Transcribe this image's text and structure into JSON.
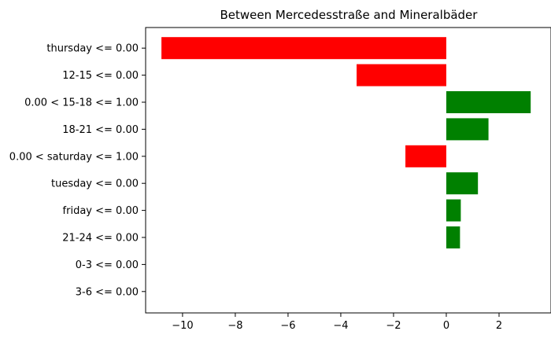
{
  "chart_data": {
    "type": "bar",
    "orientation": "horizontal",
    "title": "Between Mercedesstraße and Mineralbäder",
    "xlabel": "",
    "ylabel": "",
    "categories": [
      "thursday <= 0.00",
      "12-15 <= 0.00",
      "0.00 < 15-18 <= 1.00",
      "18-21 <= 0.00",
      "0.00 < saturday <= 1.00",
      "tuesday <= 0.00",
      "friday <= 0.00",
      "21-24 <= 0.00",
      "0-3 <= 0.00",
      "3-6 <= 0.00"
    ],
    "values": [
      -10.8,
      -3.4,
      3.2,
      1.6,
      -1.55,
      1.2,
      0.55,
      0.52,
      0,
      0
    ],
    "xlim": [
      -11.4,
      4.0
    ],
    "xticks": [
      -10,
      -8,
      -6,
      -4,
      -2,
      0,
      2
    ],
    "xtick_labels": [
      "−10",
      "−8",
      "−6",
      "−4",
      "−2",
      "0",
      "2"
    ],
    "grid": false,
    "colors": {
      "positive": "#008000",
      "negative": "#ff0000"
    }
  }
}
